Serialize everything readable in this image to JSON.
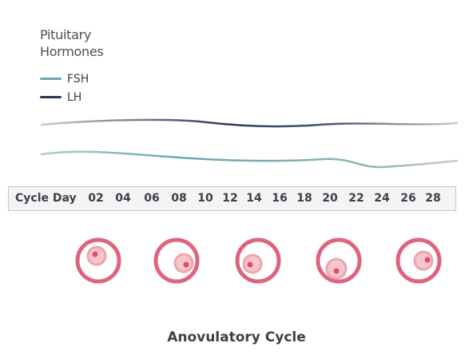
{
  "title_line1": "Pituitary",
  "title_line2": "Hormones",
  "legend": [
    {
      "label": "FSH",
      "color": "#6aa9b0"
    },
    {
      "label": "LH",
      "color": "#2b3a55"
    }
  ],
  "axis": {
    "label": "Cycle Day",
    "ticks": [
      "02",
      "04",
      "06",
      "08",
      "10",
      "12",
      "14",
      "16",
      "18",
      "20",
      "22",
      "24",
      "26",
      "28"
    ]
  },
  "follicle_count": 5,
  "caption": "Anovulatory Cycle",
  "colors": {
    "follicle_ring": "#e0637e",
    "follicle_inner": "#f2b4bb",
    "follicle_dot": "#e84a6a",
    "axis_bg": "#f4f4f4"
  }
}
